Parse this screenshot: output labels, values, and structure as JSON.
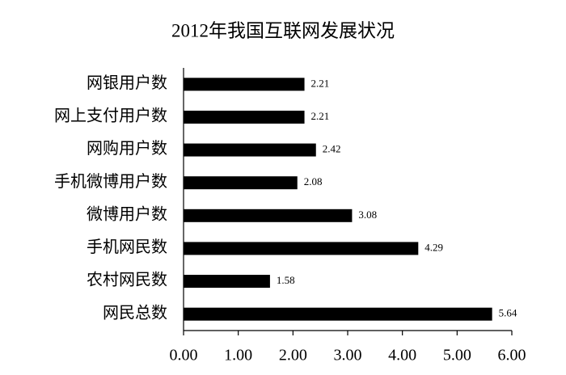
{
  "chart_data": {
    "type": "bar",
    "orientation": "horizontal",
    "title": "2012年我国互联网发展状况",
    "categories": [
      "网银用户数",
      "网上支付用户数",
      "网购用户数",
      "手机微博用户数",
      "微博用户数",
      "手机网民数",
      "农村网民数",
      "网民总数"
    ],
    "values": [
      2.21,
      2.21,
      2.42,
      2.08,
      3.08,
      4.29,
      1.58,
      5.64
    ],
    "color": "#000000",
    "xlim": [
      0,
      6
    ],
    "xticks": [
      {
        "value": 0,
        "label": "0.00"
      },
      {
        "value": 1,
        "label": "1.00"
      },
      {
        "value": 2,
        "label": "2.00"
      },
      {
        "value": 3,
        "label": "3.00"
      },
      {
        "value": 4,
        "label": "4.00"
      },
      {
        "value": 5,
        "label": "5.00"
      },
      {
        "value": 6,
        "label": "6.00"
      }
    ],
    "grid": false
  }
}
